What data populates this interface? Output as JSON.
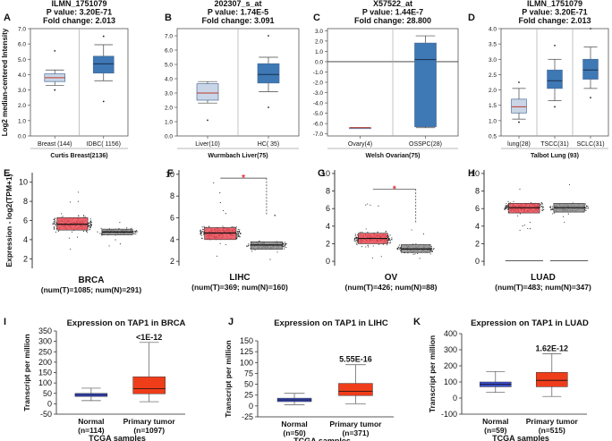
{
  "chart_data": [
    {
      "panel": "A",
      "type": "box",
      "style": "oncomine",
      "header": [
        "ILMN_1751079",
        "P value: 3.20E-71",
        "Fold change: 2.013"
      ],
      "ylabel": "Log2 median-centered Intensity",
      "ylim": [
        0,
        7
      ],
      "yticks": [
        0,
        1,
        2,
        3,
        4,
        5,
        6,
        7
      ],
      "categories": [
        "Breast (144)",
        "IDBC( 1156)"
      ],
      "boxes": [
        {
          "whisk_lo": 3.3,
          "q1": 3.55,
          "med": 3.8,
          "q3": 4.05,
          "whisk_hi": 4.3,
          "outliers": [
            5.55,
            3.0
          ]
        },
        {
          "whisk_lo": 3.6,
          "q1": 4.1,
          "med": 4.7,
          "q3": 5.2,
          "whisk_hi": 5.95,
          "outliers": [
            6.5,
            2.25
          ]
        }
      ],
      "footer": "Curtis Breast(2136)"
    },
    {
      "panel": "B",
      "type": "box",
      "style": "oncomine",
      "header": [
        "202307_s_at",
        "P value: 1.74E-5",
        "Fold change: 3.091"
      ],
      "ylim": [
        0,
        7.5
      ],
      "yticks": [
        0,
        1,
        2,
        3,
        4,
        5,
        6,
        7
      ],
      "categories": [
        "Liver(10)",
        "HC( 35)"
      ],
      "boxes": [
        {
          "whisk_lo": 2.3,
          "q1": 2.5,
          "med": 3.0,
          "q3": 3.65,
          "whisk_hi": 3.8,
          "outliers": [
            1.1
          ]
        },
        {
          "whisk_lo": 3.1,
          "q1": 3.7,
          "med": 4.3,
          "q3": 5.05,
          "whisk_hi": 5.5,
          "outliers": [
            7.0,
            2.0
          ]
        }
      ],
      "footer": "Wurmbach Liver(75)"
    },
    {
      "panel": "C",
      "type": "box",
      "style": "oncomine",
      "header": [
        "X57522_at",
        "P value: 1.44E-7",
        "Fold change: 28.800"
      ],
      "ylim": [
        -7.2,
        3.2
      ],
      "yticks": [
        3,
        2,
        1,
        0,
        -1,
        -2,
        -3,
        -4,
        -5,
        -6,
        -7
      ],
      "categories": [
        "Ovary(4)",
        "OSSPC(28)"
      ],
      "boxes": [
        {
          "whisk_lo": -6.4,
          "q1": -6.4,
          "med": -6.4,
          "q3": -6.4,
          "whisk_hi": -6.4,
          "outliers": []
        },
        {
          "whisk_lo": -6.4,
          "q1": -6.3,
          "med": 0.2,
          "q3": 1.8,
          "whisk_hi": 2.5,
          "outliers": []
        }
      ],
      "footer": "Welsh Ovarian(75)"
    },
    {
      "panel": "D",
      "type": "box",
      "style": "oncomine",
      "header": [
        "ILMN_1751079",
        "P value: 3.20E-71",
        "Fold change: 2.013"
      ],
      "ylim": [
        0.5,
        4
      ],
      "yticks": [
        0.5,
        1,
        1.5,
        2,
        2.5,
        3,
        3.5,
        4
      ],
      "categories": [
        "lung(28)",
        "TSCC(31)",
        "SCLC(31)"
      ],
      "boxes": [
        {
          "whisk_lo": 1.05,
          "q1": 1.25,
          "med": 1.45,
          "q3": 1.7,
          "whisk_hi": 2.05,
          "outliers": [
            0.95,
            2.25
          ]
        },
        {
          "whisk_lo": 1.65,
          "q1": 2.05,
          "med": 2.3,
          "q3": 2.65,
          "whisk_hi": 3.0,
          "outliers": [
            3.45,
            1.45
          ]
        },
        {
          "whisk_lo": 2.05,
          "q1": 2.35,
          "med": 2.65,
          "q3": 3.0,
          "whisk_hi": 3.4,
          "outliers": [
            4.0,
            1.75
          ]
        }
      ],
      "footer": "Talbot Lung (93)"
    },
    {
      "panel": "E",
      "type": "box",
      "style": "gepia",
      "ylabel": "Expression - log2(TPM+1)",
      "ylim": [
        1,
        11
      ],
      "yticks": [
        2,
        4,
        6,
        8,
        10
      ],
      "title": "BRCA",
      "subtitle": "(num(T)=1085; num(N)=291)",
      "significant": false,
      "boxes": [
        {
          "group": "T",
          "min": 1.9,
          "q1": 5.0,
          "med": 5.6,
          "q3": 6.3,
          "max": 10.1
        },
        {
          "group": "N",
          "min": 3.3,
          "q1": 4.5,
          "med": 4.8,
          "q3": 5.1,
          "max": 5.9
        }
      ]
    },
    {
      "panel": "F",
      "type": "box",
      "style": "gepia",
      "ylim": [
        1.6,
        10.4
      ],
      "yticks": [
        2,
        4,
        6,
        8,
        10
      ],
      "title": "LIHC",
      "subtitle": "(num(T)=369; num(N)=160)",
      "significant": true,
      "sig_label": "*",
      "boxes": [
        {
          "group": "T",
          "min": 2.3,
          "q1": 4.0,
          "med": 4.6,
          "q3": 5.1,
          "max": 9.4
        },
        {
          "group": "N",
          "min": 2.1,
          "q1": 3.1,
          "med": 3.5,
          "q3": 3.8,
          "max": 6.3
        }
      ]
    },
    {
      "panel": "G",
      "type": "box",
      "style": "gepia",
      "ylim": [
        -0.5,
        10.4
      ],
      "yticks": [
        0,
        2,
        4,
        6,
        8,
        10
      ],
      "title": "OV",
      "subtitle": "(num(T)=426; num(N)=88)",
      "significant": true,
      "sig_label": "*",
      "boxes": [
        {
          "group": "T",
          "min": 0.3,
          "q1": 2.0,
          "med": 2.6,
          "q3": 3.2,
          "max": 7.9
        },
        {
          "group": "N",
          "min": 0.3,
          "q1": 1.0,
          "med": 1.4,
          "q3": 1.9,
          "max": 4.4
        }
      ]
    },
    {
      "panel": "H",
      "type": "box",
      "style": "gepia",
      "ylim": [
        -0.5,
        10.4
      ],
      "yticks": [
        0,
        2,
        4,
        6,
        8,
        10
      ],
      "title": "LUAD",
      "subtitle": "(num(T)=483; num(N)=347)",
      "significant": false,
      "boxes": [
        {
          "group": "T",
          "min": 3.4,
          "q1": 5.5,
          "med": 6.1,
          "q3": 6.6,
          "max": 8.6
        },
        {
          "group": "N",
          "min": 3.0,
          "q1": 5.6,
          "med": 6.1,
          "q3": 6.6,
          "max": 9.0
        }
      ]
    },
    {
      "panel": "I",
      "type": "box",
      "style": "ualcan",
      "title": "Expression on TAP1 in BRCA",
      "ylabel": "Transcript per million",
      "ylim": [
        -50,
        350
      ],
      "yticks": [
        -50,
        0,
        50,
        100,
        150,
        200,
        250,
        300,
        350
      ],
      "pvalue": "<1E-12",
      "categories": [
        "Normal",
        "Primary tumor"
      ],
      "counts": [
        "(n=114)",
        "(n=1097)"
      ],
      "xlabel": "TCGA samples",
      "boxes": [
        {
          "min": 15,
          "q1": 35,
          "med": 42,
          "q3": 50,
          "max": 75
        },
        {
          "min": 10,
          "q1": 48,
          "med": 72,
          "q3": 130,
          "max": 295
        }
      ]
    },
    {
      "panel": "J",
      "type": "box",
      "style": "ualcan",
      "title": "Expression on TAP1 in LIHC",
      "ylabel": "Transcript per million",
      "ylim": [
        -25,
        150
      ],
      "yticks": [
        -25,
        0,
        25,
        50,
        75,
        100,
        125,
        150
      ],
      "pvalue": "5.55E-16",
      "categories": [
        "Normal",
        "Primary tumor"
      ],
      "counts": [
        "(n=50)",
        "(n=371)"
      ],
      "xlabel": "TCGA samples",
      "boxes": [
        {
          "min": 3,
          "q1": 10,
          "med": 14,
          "q3": 18,
          "max": 29
        },
        {
          "min": 5,
          "q1": 24,
          "med": 34,
          "q3": 52,
          "max": 95
        }
      ]
    },
    {
      "panel": "K",
      "type": "box",
      "style": "ualcan",
      "title": "Expression on TAP1 in LUAD",
      "ylabel": "Transcript per million",
      "ylim": [
        -100,
        400
      ],
      "yticks": [
        -100,
        0,
        100,
        200,
        300,
        400
      ],
      "pvalue": "1.62E-12",
      "categories": [
        "Normal",
        "Primary tumor"
      ],
      "counts": [
        "(n=59)",
        "(n=515)"
      ],
      "xlabel": "TCGA samples",
      "boxes": [
        {
          "min": 35,
          "q1": 70,
          "med": 85,
          "q3": 100,
          "max": 165
        },
        {
          "min": 10,
          "q1": 70,
          "med": 110,
          "q3": 160,
          "max": 275
        }
      ]
    }
  ],
  "colors": {
    "oncomine_box_light": "#c9d6e7",
    "oncomine_box_dark": "#3e78b5",
    "gepia_tumor": "#ec4a55",
    "gepia_normal": "#888888",
    "gepia_sig": "#e8262f",
    "ualcan_normal": "#3d4fd0",
    "ualcan_tumor": "#ef3d1a",
    "text": "#111111"
  }
}
